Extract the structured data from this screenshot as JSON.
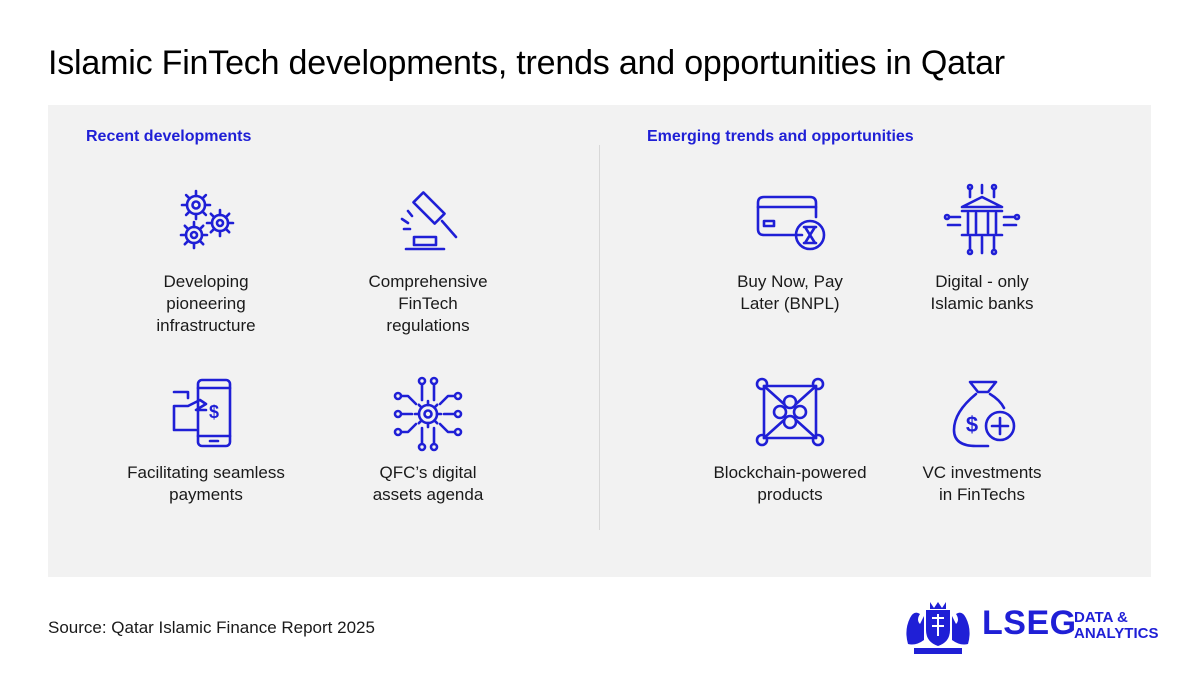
{
  "title": "Islamic FinTech developments, trends and opportunities in Qatar",
  "sections": [
    {
      "heading": "Recent developments",
      "items": [
        {
          "label": "Developing\npioneering\ninfrastructure",
          "icon": "gears-icon"
        },
        {
          "label": "Comprehensive\nFinTech\nregulations",
          "icon": "gavel-icon"
        },
        {
          "label": "Facilitating seamless\npayments",
          "icon": "mobile-payment-icon"
        },
        {
          "label": "QFC’s digital\nassets agenda",
          "icon": "digital-gear-network-icon"
        }
      ]
    },
    {
      "heading": "Emerging trends and opportunities",
      "items": [
        {
          "label": "Buy Now, Pay\nLater (BNPL)",
          "icon": "card-hourglass-icon"
        },
        {
          "label": "Digital - only\nIslamic banks",
          "icon": "digital-bank-icon"
        },
        {
          "label": "Blockchain-powered\nproducts",
          "icon": "blockchain-icon"
        },
        {
          "label": "VC investments\nin FinTechs",
          "icon": "money-bag-plus-icon"
        }
      ]
    }
  ],
  "source": "Source: Qatar Islamic Finance Report 2025",
  "logo": {
    "name": "LSEG",
    "line1": "DATA &",
    "line2": "ANALYTICS"
  },
  "colors": {
    "accent": "#1f1fd6",
    "panel": "#f2f2f2",
    "text": "#1a1a1a"
  }
}
